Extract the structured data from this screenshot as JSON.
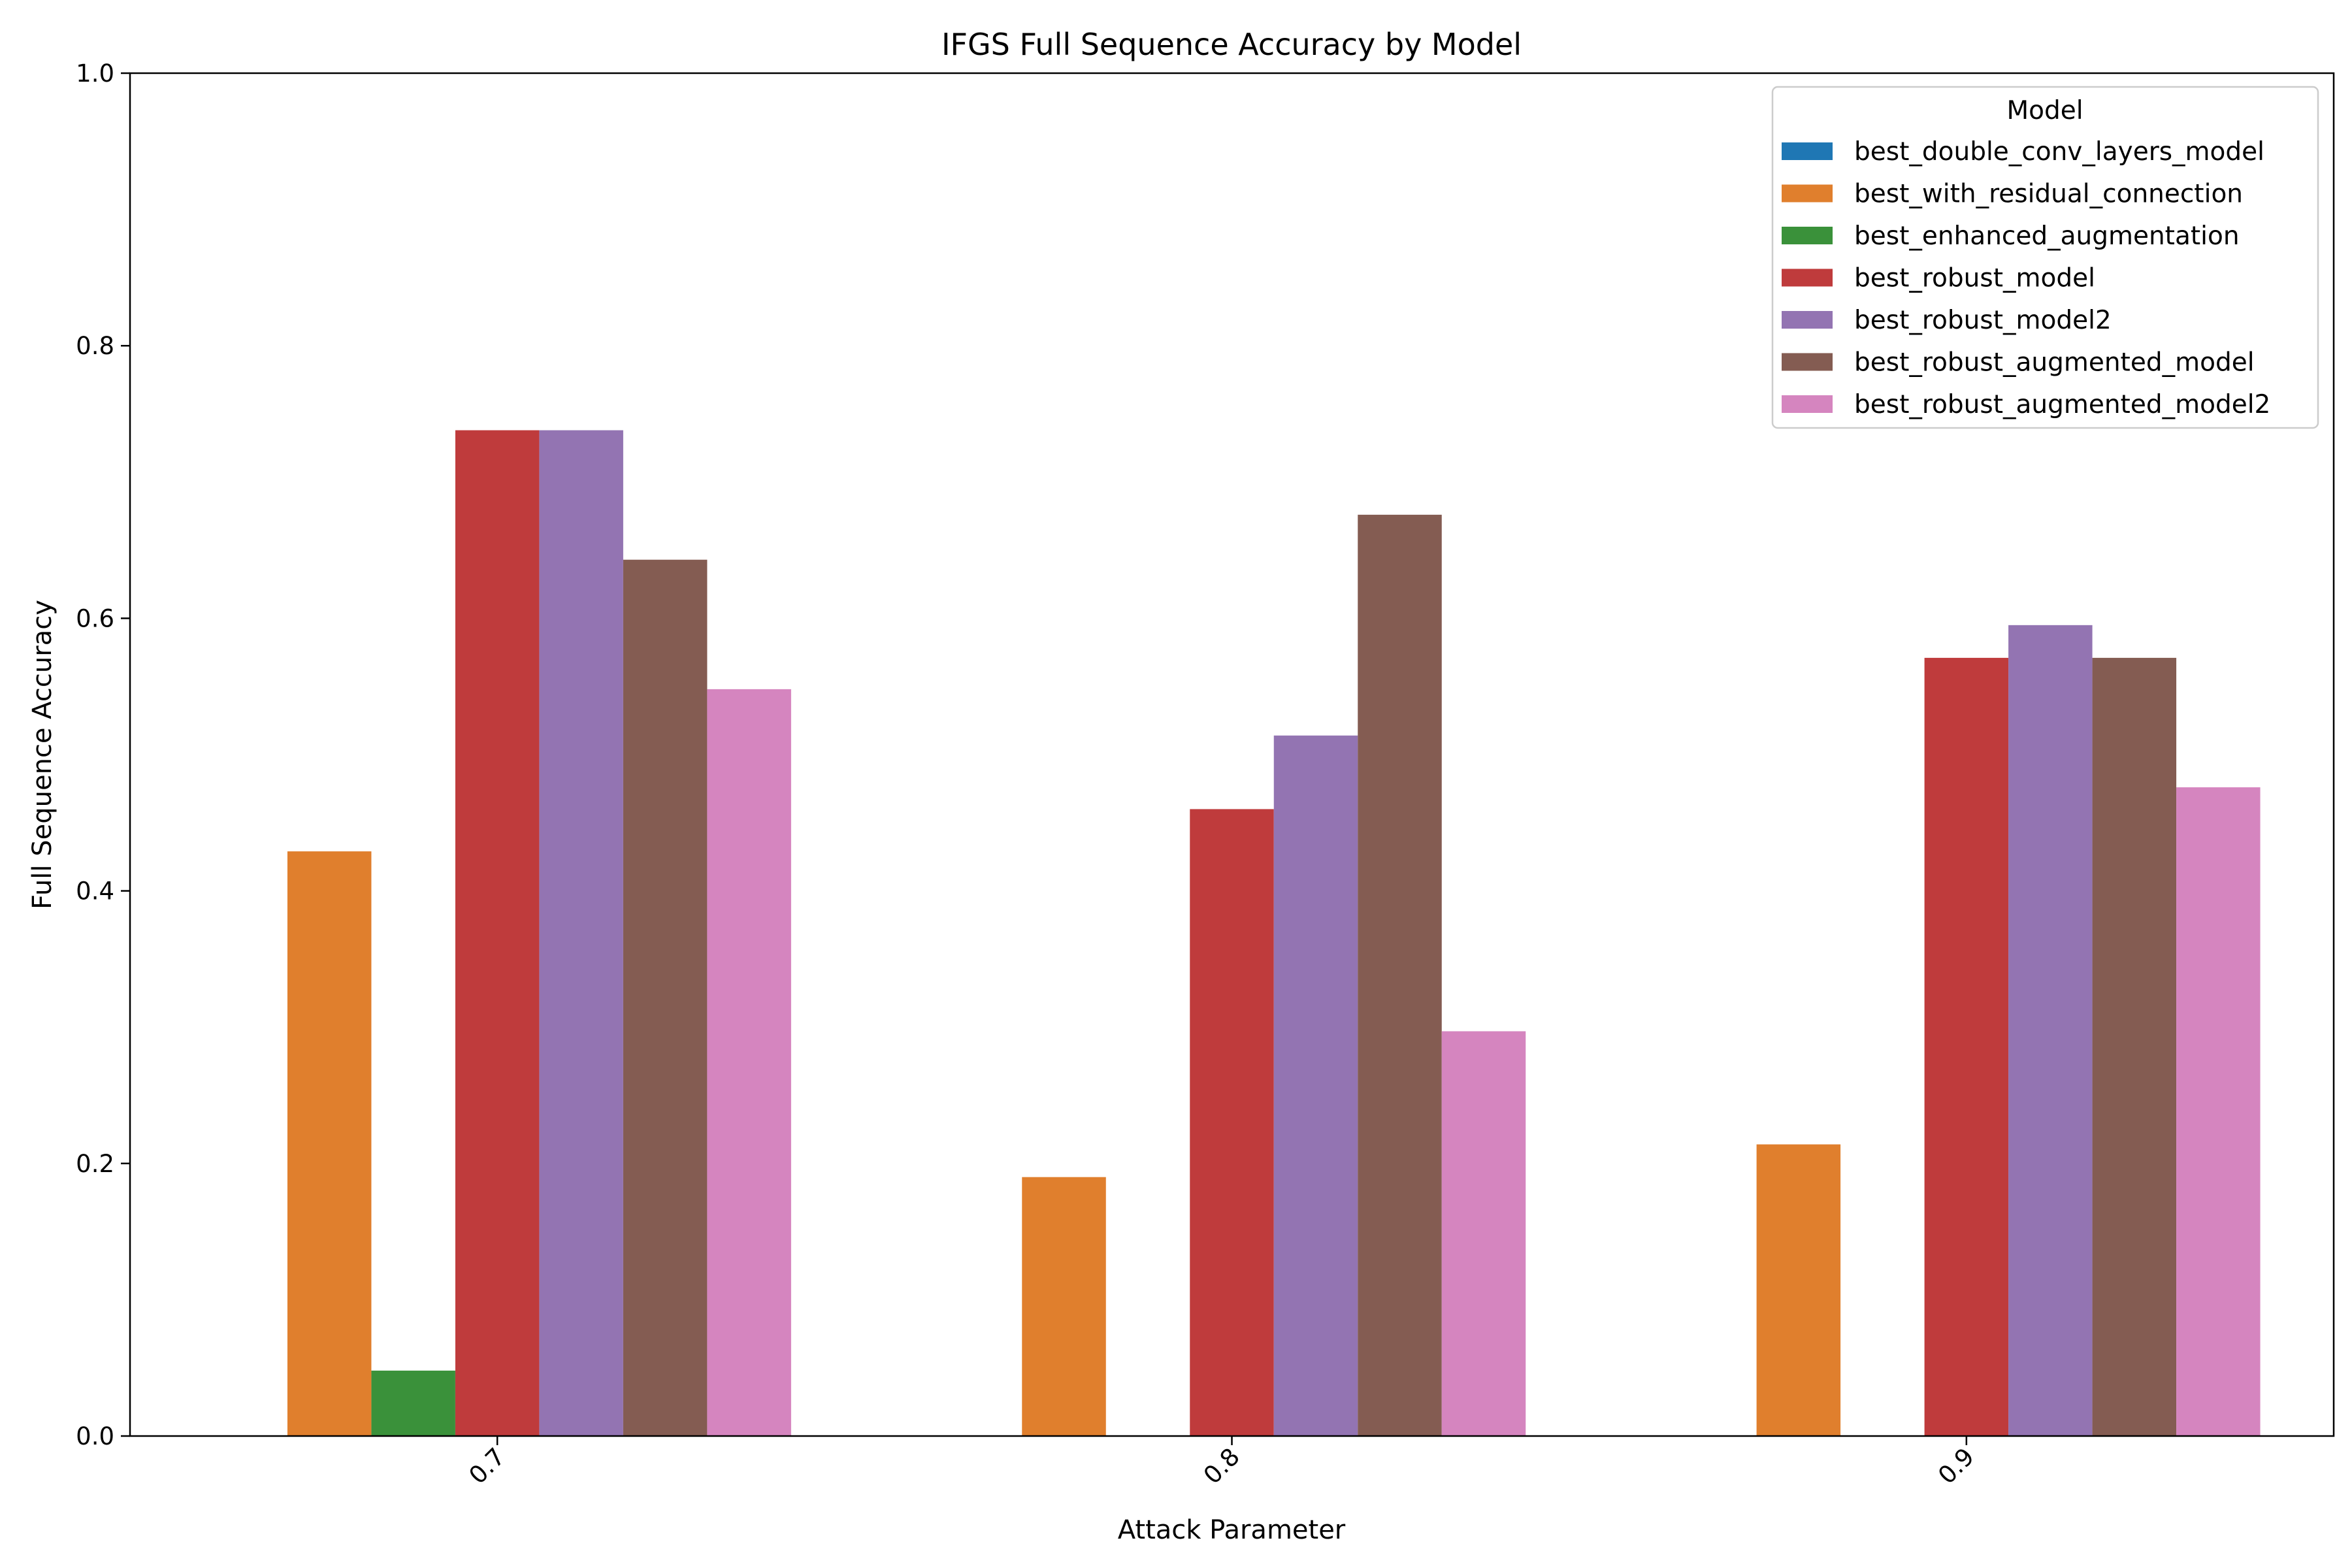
{
  "chart_data": {
    "type": "bar",
    "title": "IFGS Full Sequence Accuracy by Model",
    "xlabel": "Attack Parameter",
    "ylabel": "Full Sequence Accuracy",
    "ylim": [
      0,
      1.0
    ],
    "yticks": [
      "0.0",
      "0.2",
      "0.4",
      "0.6",
      "0.8",
      "1.0"
    ],
    "categories": [
      "0.7",
      "0.8",
      "0.9"
    ],
    "grid": false,
    "legend": {
      "title": "Model",
      "placement": "top-right"
    },
    "series": [
      {
        "name": "best_double_conv_layers_model",
        "color": "#1f77b4",
        "values": [
          0,
          0,
          0
        ]
      },
      {
        "name": "best_with_residual_connection",
        "color": "#e07f2d",
        "values": [
          0.429,
          0.19,
          0.214
        ]
      },
      {
        "name": "best_enhanced_augmentation",
        "color": "#3a913a",
        "values": [
          0.048,
          0,
          0
        ]
      },
      {
        "name": "best_robust_model",
        "color": "#bf3b3c",
        "values": [
          0.738,
          0.46,
          0.571
        ]
      },
      {
        "name": "best_robust_model2",
        "color": "#9374b2",
        "values": [
          0.738,
          0.514,
          0.595
        ]
      },
      {
        "name": "best_robust_augmented_model",
        "color": "#845c52",
        "values": [
          0.643,
          0.676,
          0.571
        ]
      },
      {
        "name": "best_robust_augmented_model2",
        "color": "#d585bf",
        "values": [
          0.548,
          0.297,
          0.476
        ]
      }
    ]
  }
}
